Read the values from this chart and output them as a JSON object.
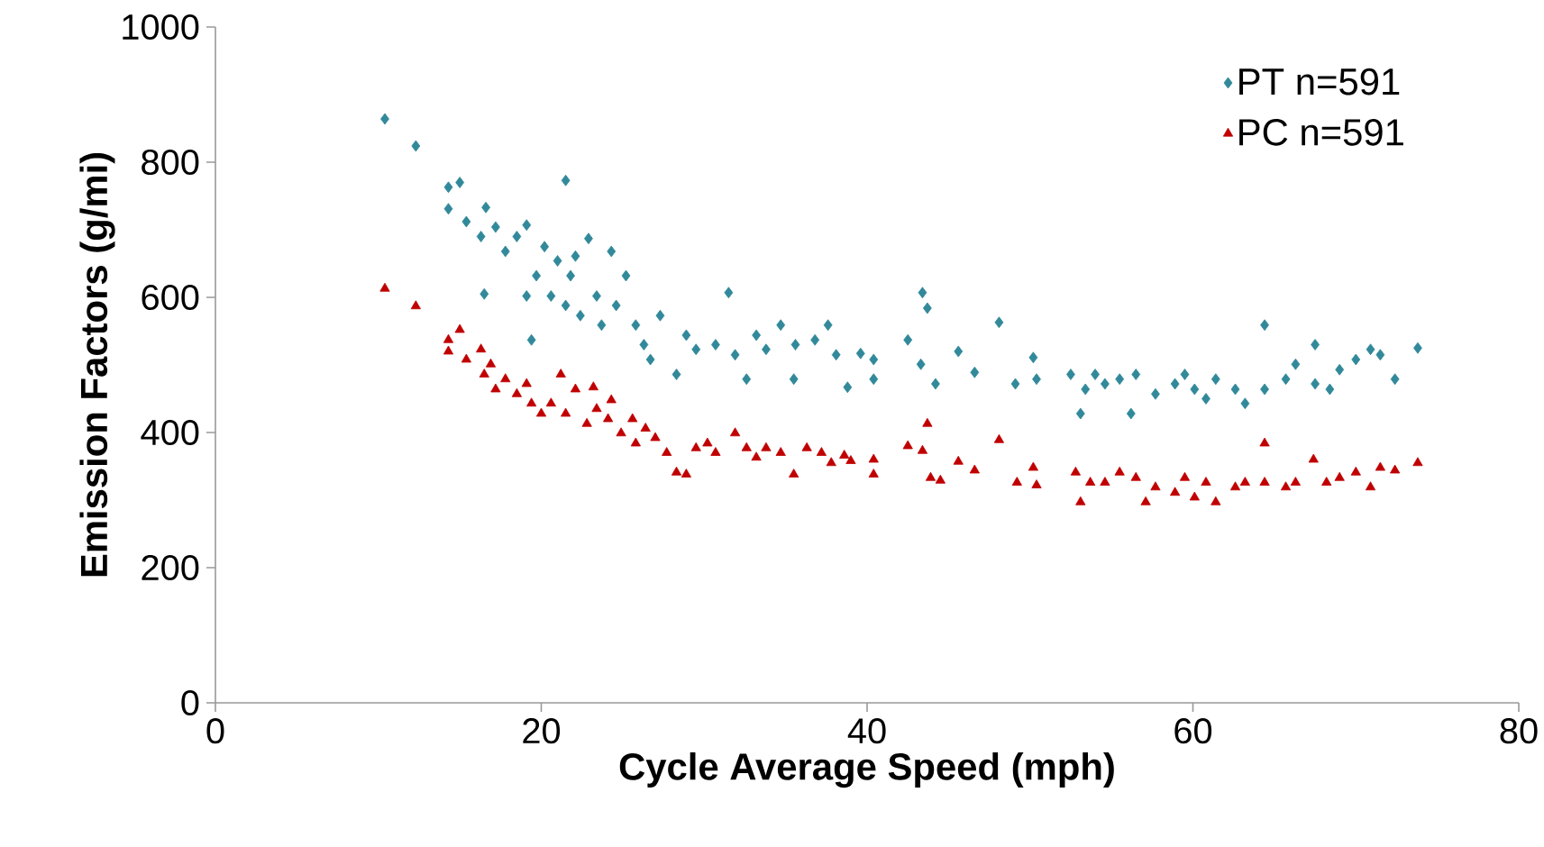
{
  "chart_data": {
    "type": "scatter",
    "xlabel": "Cycle Average Speed (mph)",
    "ylabel": "Emission Factors (g/mi)",
    "xlim": [
      0,
      80
    ],
    "xticks": [
      0,
      20,
      40,
      60,
      80
    ],
    "ylim": [
      0,
      1000
    ],
    "yticks": [
      0,
      200,
      400,
      600,
      800,
      1000
    ],
    "grid": false,
    "legend": "top right",
    "series": [
      {
        "name": "PT n=591",
        "color": "#31899a",
        "marker": "diamond",
        "x": [
          10.4,
          12.3,
          14.3,
          15.0,
          14.3,
          15.4,
          16.3,
          16.5,
          16.6,
          17.2,
          17.8,
          18.5,
          19.1,
          19.1,
          19.4,
          19.7,
          20.2,
          20.6,
          21.0,
          21.5,
          21.5,
          21.8,
          22.1,
          22.4,
          22.9,
          23.4,
          23.7,
          24.3,
          24.6,
          25.2,
          25.8,
          26.3,
          26.7,
          27.3,
          28.3,
          28.9,
          29.5,
          30.7,
          31.5,
          31.9,
          32.6,
          33.2,
          33.8,
          34.7,
          35.5,
          35.6,
          36.8,
          37.6,
          38.1,
          38.8,
          39.6,
          40.4,
          40.4,
          42.5,
          43.4,
          43.7,
          43.3,
          44.2,
          45.6,
          46.6,
          48.1,
          49.1,
          50.2,
          50.4,
          52.5,
          53.1,
          53.4,
          54.0,
          54.6,
          55.5,
          56.2,
          56.5,
          57.7,
          58.9,
          59.5,
          60.1,
          60.8,
          61.4,
          62.6,
          63.2,
          64.4,
          64.4,
          65.7,
          66.3,
          67.5,
          67.5,
          68.4,
          69.0,
          70.0,
          70.9,
          71.5,
          72.4,
          73.8
        ],
        "values": [
          864,
          824,
          763,
          770,
          731,
          712,
          690,
          605,
          733,
          704,
          668,
          690,
          707,
          602,
          537,
          632,
          675,
          602,
          654,
          773,
          588,
          632,
          661,
          573,
          687,
          602,
          559,
          668,
          588,
          632,
          559,
          530,
          508,
          573,
          486,
          544,
          523,
          530,
          607,
          515,
          479,
          544,
          523,
          559,
          479,
          530,
          537,
          559,
          515,
          467,
          517,
          479,
          508,
          537,
          607,
          584,
          501,
          472,
          520,
          489,
          563,
          472,
          511,
          479,
          486,
          428,
          464,
          486,
          472,
          479,
          428,
          486,
          457,
          472,
          486,
          464,
          450,
          479,
          464,
          443,
          559,
          464,
          479,
          501,
          530,
          472,
          464,
          493,
          508,
          523,
          515,
          479,
          525
        ]
      },
      {
        "name": "PC n=591",
        "color": "#c00000",
        "marker": "triangle",
        "x": [
          10.4,
          12.3,
          14.3,
          15.0,
          14.3,
          15.4,
          16.3,
          16.5,
          16.9,
          17.2,
          17.8,
          18.5,
          19.1,
          19.4,
          20.0,
          20.6,
          21.2,
          21.5,
          22.1,
          22.8,
          23.4,
          23.2,
          24.1,
          24.3,
          24.9,
          25.6,
          25.8,
          26.4,
          27.0,
          27.7,
          28.3,
          28.9,
          29.5,
          30.2,
          30.7,
          31.9,
          32.6,
          33.2,
          33.8,
          34.7,
          35.5,
          36.3,
          37.2,
          37.8,
          38.6,
          39.0,
          40.4,
          40.4,
          42.5,
          43.4,
          43.7,
          43.9,
          44.5,
          45.6,
          46.6,
          48.1,
          49.2,
          50.2,
          50.4,
          52.8,
          53.1,
          53.7,
          54.6,
          55.5,
          56.5,
          57.1,
          57.7,
          58.9,
          59.5,
          60.1,
          60.8,
          61.4,
          62.6,
          63.2,
          64.4,
          64.4,
          65.7,
          66.3,
          67.4,
          68.2,
          69.0,
          70.0,
          70.9,
          71.5,
          72.4,
          73.8
        ],
        "values": [
          613,
          587,
          520,
          552,
          537,
          508,
          523,
          486,
          501,
          464,
          479,
          457,
          472,
          443,
          428,
          443,
          486,
          428,
          464,
          413,
          435,
          467,
          420,
          448,
          399,
          420,
          384,
          406,
          392,
          370,
          341,
          338,
          377,
          384,
          370,
          399,
          377,
          363,
          377,
          370,
          338,
          377,
          370,
          355,
          366,
          358,
          338,
          360,
          380,
          373,
          413,
          333,
          329,
          357,
          344,
          389,
          326,
          348,
          322,
          341,
          297,
          326,
          326,
          341,
          333,
          297,
          319,
          311,
          333,
          304,
          326,
          297,
          319,
          326,
          384,
          326,
          319,
          326,
          360,
          326,
          333,
          341,
          319,
          348,
          344,
          355
        ]
      }
    ]
  }
}
